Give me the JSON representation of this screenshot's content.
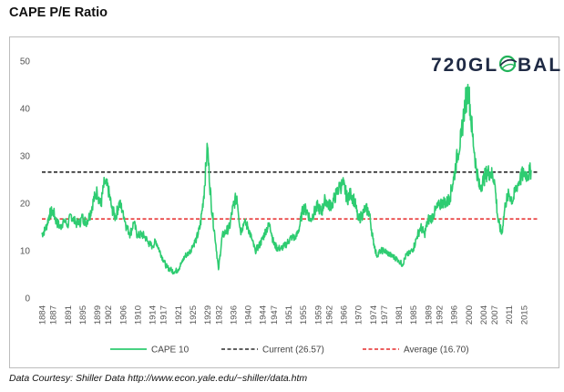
{
  "title": "CAPE P/E Ratio",
  "logo": {
    "prefix": "720GL",
    "suffix": "BAL"
  },
  "footer": {
    "source": "Data Courtesy: Shiller Data  http://www.econ.yale.edu/~shiller/data.htm"
  },
  "colors": {
    "cape": "#2ecc71",
    "current": "#000000",
    "average": "#e00000",
    "logo_globe": "#22b35a"
  },
  "chart_data": {
    "type": "line",
    "title": "CAPE P/E Ratio",
    "xlabel": "",
    "ylabel": "",
    "xlim": [
      1884,
      2019
    ],
    "ylim": [
      0,
      50
    ],
    "y_ticks": [
      0,
      10,
      20,
      30,
      40,
      50
    ],
    "x_ticks": [
      "1884",
      "1887",
      "1891",
      "1895",
      "1899",
      "1902",
      "1906",
      "1910",
      "1914",
      "1917",
      "1921",
      "1925",
      "1929",
      "1932",
      "1936",
      "1940",
      "1944",
      "1947",
      "1951",
      "1955",
      "1959",
      "1962",
      "1966",
      "1970",
      "1974",
      "1977",
      "1981",
      "1985",
      "1989",
      "1992",
      "1996",
      "2000",
      "2004",
      "2007",
      "2011",
      "2015"
    ],
    "legend_position": "bottom",
    "grid": false,
    "series": [
      {
        "name": "CAPE 10",
        "style": "solid",
        "x": [
          1884,
          1885,
          1886,
          1887,
          1888,
          1889,
          1890,
          1891,
          1892,
          1893,
          1894,
          1895,
          1896,
          1897,
          1898,
          1899,
          1900,
          1901,
          1902,
          1903,
          1904,
          1905,
          1906,
          1907,
          1908,
          1909,
          1910,
          1911,
          1912,
          1913,
          1914,
          1915,
          1916,
          1917,
          1918,
          1919,
          1920,
          1921,
          1922,
          1923,
          1924,
          1925,
          1926,
          1927,
          1928,
          1929,
          1930,
          1931,
          1932,
          1933,
          1934,
          1935,
          1936,
          1937,
          1938,
          1939,
          1940,
          1941,
          1942,
          1943,
          1944,
          1945,
          1946,
          1947,
          1948,
          1949,
          1950,
          1951,
          1952,
          1953,
          1954,
          1955,
          1956,
          1957,
          1958,
          1959,
          1960,
          1961,
          1962,
          1963,
          1964,
          1965,
          1966,
          1967,
          1968,
          1969,
          1970,
          1971,
          1972,
          1973,
          1974,
          1975,
          1976,
          1977,
          1978,
          1979,
          1980,
          1981,
          1982,
          1983,
          1984,
          1985,
          1986,
          1987,
          1988,
          1989,
          1990,
          1991,
          1992,
          1993,
          1994,
          1995,
          1996,
          1997,
          1998,
          1999,
          2000,
          2001,
          2002,
          2003,
          2004,
          2005,
          2006,
          2007,
          2008,
          2009,
          2010,
          2011,
          2012,
          2013,
          2014,
          2015,
          2016,
          2017
        ],
        "values": [
          13.5,
          14.5,
          17.5,
          18.5,
          16.0,
          15.0,
          16.5,
          15.5,
          17.5,
          16.0,
          15.5,
          17.0,
          16.0,
          17.5,
          20.5,
          22.5,
          19.5,
          24.5,
          23.0,
          19.0,
          17.0,
          20.0,
          18.5,
          15.0,
          13.5,
          16.0,
          13.0,
          13.5,
          13.0,
          11.5,
          11.0,
          12.0,
          10.0,
          8.0,
          6.5,
          6.0,
          5.5,
          6.0,
          7.5,
          9.0,
          9.5,
          11.0,
          12.5,
          15.0,
          21.5,
          32.0,
          20.0,
          13.5,
          6.0,
          13.0,
          14.0,
          15.0,
          19.5,
          21.5,
          14.0,
          16.0,
          15.0,
          12.5,
          10.0,
          11.0,
          12.5,
          14.5,
          15.5,
          11.5,
          10.5,
          10.5,
          11.0,
          12.0,
          13.0,
          12.5,
          15.0,
          19.0,
          18.5,
          16.5,
          18.0,
          19.5,
          18.0,
          21.0,
          19.5,
          20.0,
          22.0,
          23.5,
          24.0,
          21.0,
          22.0,
          20.5,
          16.5,
          17.5,
          19.0,
          18.0,
          12.5,
          9.0,
          10.0,
          10.0,
          9.5,
          9.0,
          8.5,
          8.0,
          7.0,
          9.0,
          9.5,
          10.5,
          13.0,
          15.0,
          13.5,
          16.5,
          17.0,
          18.5,
          19.5,
          20.5,
          20.0,
          21.5,
          25.5,
          30.5,
          34.0,
          41.0,
          44.0,
          35.0,
          28.0,
          23.0,
          25.0,
          26.5,
          26.5,
          25.0,
          16.5,
          13.5,
          20.0,
          22.0,
          20.5,
          23.5,
          25.0,
          26.5,
          26.0,
          27.0
        ]
      },
      {
        "name": "Current (26.57)",
        "style": "dashed",
        "value": 26.57
      },
      {
        "name": "Average (16.70)",
        "style": "dashed",
        "value": 16.7
      }
    ]
  }
}
